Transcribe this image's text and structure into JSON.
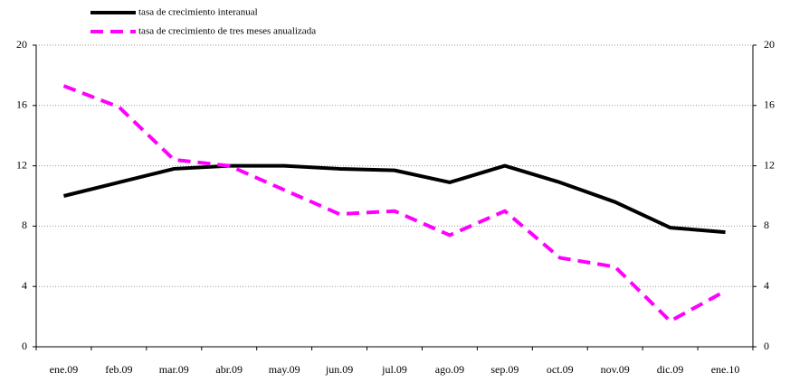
{
  "chart_data": {
    "type": "line",
    "categories": [
      "ene.09",
      "feb.09",
      "mar.09",
      "abr.09",
      "may.09",
      "jun.09",
      "jul.09",
      "ago.09",
      "sep.09",
      "oct.09",
      "nov.09",
      "dic.09",
      "ene.10"
    ],
    "series": [
      {
        "name": "tasa de crecimiento interanual",
        "color": "#000000",
        "dash": "solid",
        "values": [
          10.0,
          10.9,
          11.8,
          12.0,
          12.0,
          11.8,
          11.7,
          10.9,
          12.0,
          10.9,
          9.6,
          7.9,
          7.6
        ]
      },
      {
        "name": "tasa de crecimiento de tres meses anualizada",
        "color": "#ff00ff",
        "dash": "dashed",
        "values": [
          17.3,
          15.9,
          12.4,
          12.0,
          10.4,
          8.8,
          9.0,
          7.4,
          9.0,
          5.9,
          5.3,
          1.7,
          3.7
        ]
      }
    ],
    "ylim": [
      0,
      20
    ],
    "yticks": [
      0,
      4,
      8,
      12,
      16,
      20
    ],
    "y2lim": [
      0,
      20
    ],
    "y2ticks": [
      0,
      4,
      8,
      12,
      16,
      20
    ],
    "grid": true,
    "legend": "top-left"
  }
}
